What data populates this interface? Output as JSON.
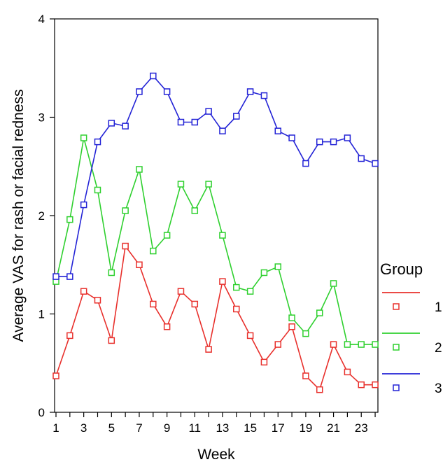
{
  "chart_data": {
    "type": "line",
    "title": "",
    "xlabel": "Week",
    "ylabel": "Average VAS for rash or facial redness",
    "xlim": [
      1,
      24
    ],
    "ylim": [
      0,
      4
    ],
    "x_ticks": [
      "1",
      "3",
      "5",
      "7",
      "9",
      "11",
      "13",
      "15",
      "17",
      "19",
      "21",
      "23"
    ],
    "y_ticks": [
      "0",
      "1",
      "2",
      "3",
      "4"
    ],
    "grid": false,
    "legend": {
      "title": "Group",
      "position": "right"
    },
    "x": [
      1,
      2,
      3,
      4,
      5,
      6,
      7,
      8,
      9,
      10,
      11,
      12,
      13,
      14,
      15,
      16,
      17,
      18,
      19,
      20,
      21,
      22,
      23,
      24
    ],
    "series": [
      {
        "name": "1",
        "color": "#e8302c",
        "values": [
          0.37,
          0.78,
          1.23,
          1.14,
          0.73,
          1.69,
          1.5,
          1.1,
          0.87,
          1.23,
          1.1,
          0.64,
          1.33,
          1.05,
          0.78,
          0.51,
          0.69,
          0.87,
          0.37,
          0.23,
          0.69,
          0.41,
          0.28,
          0.28
        ]
      },
      {
        "name": "2",
        "color": "#2fd02f",
        "values": [
          1.33,
          1.96,
          2.79,
          2.26,
          1.42,
          2.05,
          2.47,
          1.64,
          1.8,
          2.32,
          2.05,
          2.32,
          1.8,
          1.27,
          1.23,
          1.42,
          1.48,
          0.96,
          0.8,
          1.01,
          1.31,
          0.69,
          0.69,
          0.69
        ]
      },
      {
        "name": "3",
        "color": "#2323d6",
        "values": [
          1.38,
          1.38,
          2.11,
          2.75,
          2.94,
          2.91,
          3.26,
          3.42,
          3.26,
          2.95,
          2.95,
          3.06,
          2.86,
          3.01,
          3.26,
          3.22,
          2.86,
          2.79,
          2.53,
          2.75,
          2.75,
          2.79,
          2.58,
          2.53
        ]
      }
    ]
  }
}
